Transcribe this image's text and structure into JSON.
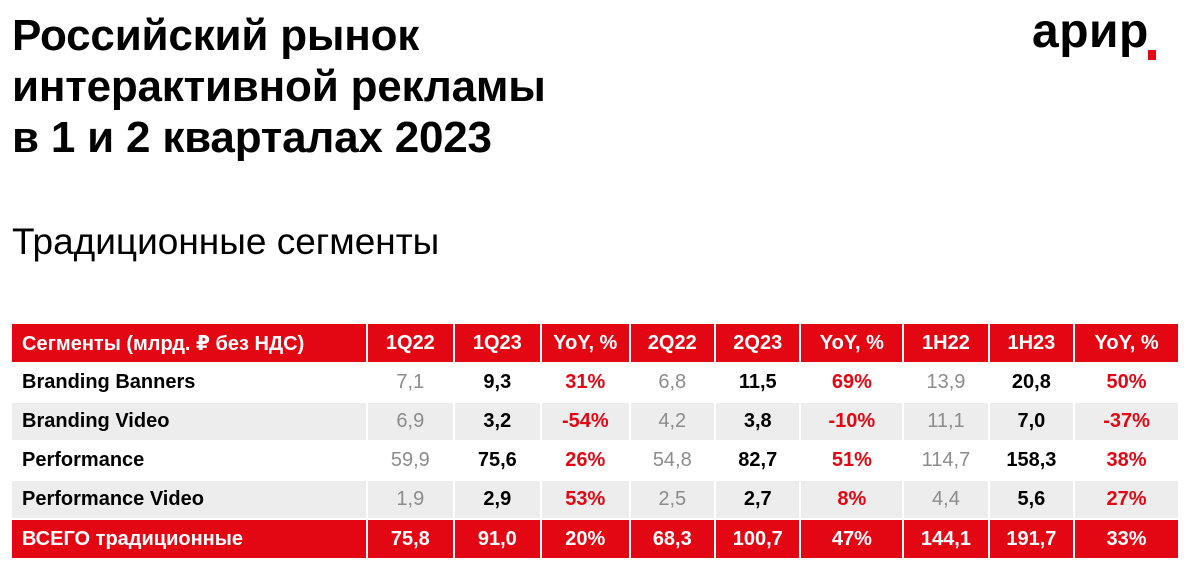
{
  "header": {
    "title_lines": [
      "Российский рынок",
      "интерактивной рекламы",
      "в 1 и 2 кварталах 2023"
    ],
    "subtitle": "Традиционные сегменты",
    "logo_text": "арир",
    "accent_color": "#e30613"
  },
  "table": {
    "columns": [
      "Сегменты (млрд. ₽ без НДС)",
      "1Q22",
      "1Q23",
      "YoY, %",
      "2Q22",
      "2Q23",
      "YoY, %",
      "1H22",
      "1H23",
      "YoY, %"
    ],
    "rows": [
      [
        "Branding Banners",
        "7,1",
        "9,3",
        "31%",
        "6,8",
        "11,5",
        "69%",
        "13,9",
        "20,8",
        "50%"
      ],
      [
        "Branding Video",
        "6,9",
        "3,2",
        "-54%",
        "4,2",
        "3,8",
        "-10%",
        "11,1",
        "7,0",
        "-37%"
      ],
      [
        "Performance",
        "59,9",
        "75,6",
        "26%",
        "54,8",
        "82,7",
        "51%",
        "114,7",
        "158,3",
        "38%"
      ],
      [
        "Performance Video",
        "1,9",
        "2,9",
        "53%",
        "2,5",
        "2,7",
        "8%",
        "4,4",
        "5,6",
        "27%"
      ]
    ],
    "total": [
      "ВСЕГО традиционные",
      "75,8",
      "91,0",
      "20%",
      "68,3",
      "100,7",
      "47%",
      "144,1",
      "191,7",
      "33%"
    ]
  }
}
